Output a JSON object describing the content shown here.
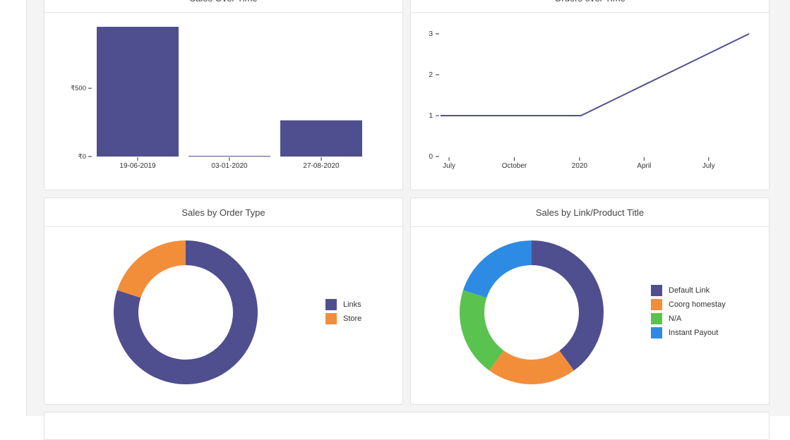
{
  "cards": {
    "sales_over_time": {
      "title": "Sales Over Time"
    },
    "orders_over_time": {
      "title": "Orders over Time"
    },
    "sales_by_order_type": {
      "title": "Sales by Order Type"
    },
    "sales_by_link": {
      "title": "Sales by Link/Product Title"
    }
  },
  "colors": {
    "purple": "#4f4f8f",
    "orange": "#f28e3a",
    "green": "#5ac24f",
    "blue": "#2d8be3"
  },
  "chart_data": [
    {
      "type": "bar",
      "title": "Sales Over Time",
      "categories": [
        "19-06-2019",
        "03-01-2020",
        "27-08-2020"
      ],
      "values": [
        950,
        5,
        265
      ],
      "yticks": [
        0,
        500
      ],
      "ytick_labels": [
        "₹0",
        "₹500"
      ],
      "ylim": [
        0,
        1000
      ]
    },
    {
      "type": "line",
      "title": "Orders over Time",
      "x": [
        "2019-06-19",
        "2020-01-03",
        "2020-08-27"
      ],
      "y": [
        1,
        1,
        3
      ],
      "yticks": [
        0,
        1,
        2,
        3
      ],
      "ylim": [
        0,
        3
      ],
      "xticks": [
        "July",
        "October",
        "2020",
        "April",
        "July"
      ]
    },
    {
      "type": "pie",
      "title": "Sales by Order Type",
      "labels": [
        "Links",
        "Store"
      ],
      "values": [
        80,
        20
      ]
    },
    {
      "type": "pie",
      "title": "Sales by Link/Product Title",
      "labels": [
        "Default Link",
        "Coorg homestay",
        "N/A",
        "Instant Payout"
      ],
      "values": [
        40,
        20,
        20,
        20
      ]
    }
  ]
}
